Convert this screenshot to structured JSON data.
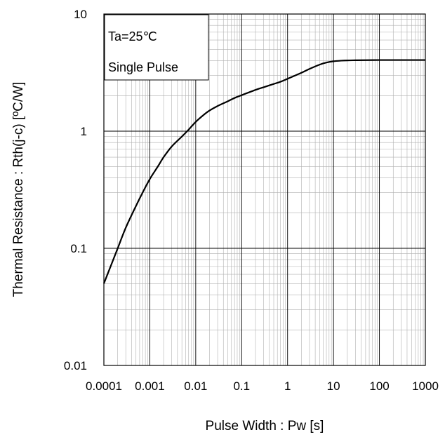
{
  "chart_data": {
    "type": "line",
    "xscale": "log",
    "yscale": "log",
    "xlim": [
      0.0001,
      1000
    ],
    "ylim": [
      0.01,
      10
    ],
    "grid": true,
    "xlabel": "Pulse Width : Pw [s]",
    "ylabel": "Thermal  Resistance : Rth(j-c)  [ºC/W]",
    "x_tick_labels": [
      "0.0001",
      "0.001",
      "0.01",
      "0.1",
      "1",
      "10",
      "100",
      "1000"
    ],
    "y_tick_labels": [
      "0.01",
      "0.1",
      "1",
      "10"
    ],
    "annotations": [
      "Ta=25℃",
      "Single Pulse"
    ],
    "series": [
      {
        "x": [
          0.0001,
          0.00015,
          0.0002,
          0.0003,
          0.0005,
          0.0007,
          0.001,
          0.0015,
          0.002,
          0.003,
          0.005,
          0.007,
          0.01,
          0.015,
          0.02,
          0.03,
          0.05,
          0.07,
          0.1,
          0.2,
          0.3,
          0.5,
          0.7,
          1,
          2,
          3,
          5,
          7,
          10,
          15,
          20,
          30,
          50,
          100,
          200,
          500,
          1000
        ],
        "y": [
          0.05,
          0.075,
          0.1,
          0.15,
          0.23,
          0.3,
          0.39,
          0.5,
          0.6,
          0.74,
          0.9,
          1.03,
          1.2,
          1.38,
          1.5,
          1.64,
          1.8,
          1.92,
          2.03,
          2.25,
          2.37,
          2.53,
          2.64,
          2.8,
          3.15,
          3.4,
          3.7,
          3.85,
          3.95,
          4.0,
          4.02,
          4.03,
          4.04,
          4.05,
          4.05,
          4.05,
          4.05
        ]
      }
    ]
  }
}
